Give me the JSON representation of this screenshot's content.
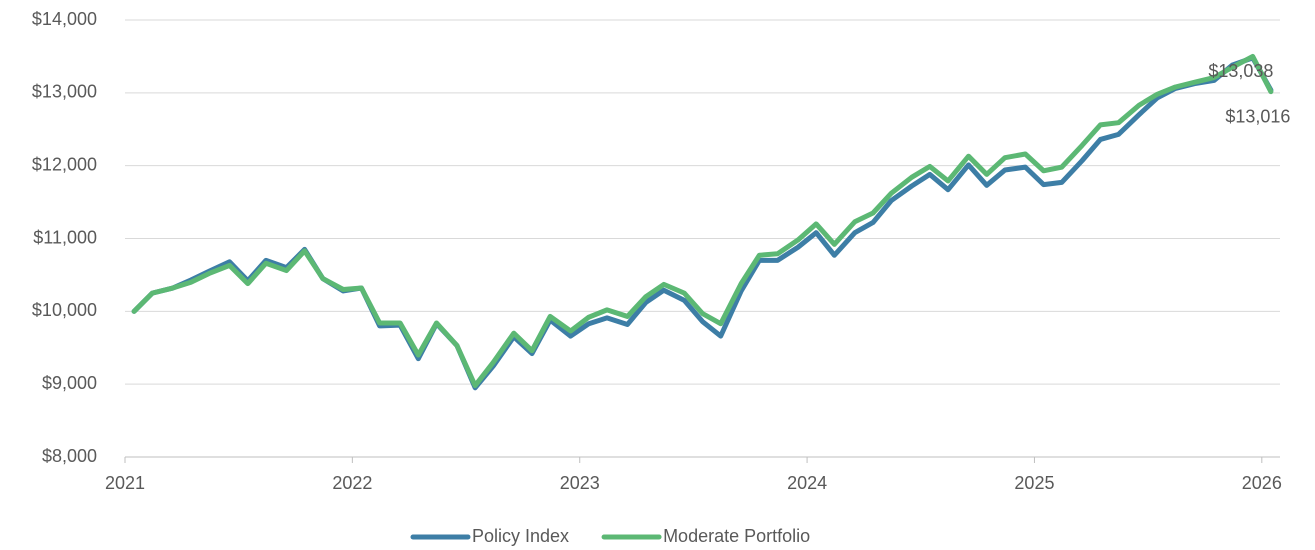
{
  "chart_data": {
    "type": "line",
    "x": [
      2021.04,
      2021.12,
      2021.21,
      2021.29,
      2021.37,
      2021.46,
      2021.54,
      2021.62,
      2021.71,
      2021.79,
      2021.87,
      2021.96,
      2022.04,
      2022.12,
      2022.21,
      2022.29,
      2022.37,
      2022.46,
      2022.54,
      2022.62,
      2022.71,
      2022.79,
      2022.87,
      2022.96,
      2023.04,
      2023.12,
      2023.21,
      2023.29,
      2023.37,
      2023.46,
      2023.54,
      2023.62,
      2023.71,
      2023.79,
      2023.87,
      2023.96,
      2024.04,
      2024.12,
      2024.21,
      2024.29,
      2024.37,
      2024.46,
      2024.54,
      2024.62,
      2024.71,
      2024.79,
      2024.87,
      2024.96,
      2025.04,
      2025.12,
      2025.21,
      2025.29,
      2025.37,
      2025.46,
      2025.54,
      2025.62,
      2025.71,
      2025.79,
      2025.87,
      2025.96,
      2026.04
    ],
    "series": [
      {
        "name": "Policy Index",
        "color": "#3d7ea6",
        "values": [
          10000,
          10250,
          10320,
          10430,
          10550,
          10680,
          10420,
          10700,
          10600,
          10850,
          10450,
          10280,
          10320,
          9800,
          9810,
          9350,
          9830,
          9530,
          8950,
          9250,
          9650,
          9420,
          9880,
          9660,
          9830,
          9910,
          9820,
          10120,
          10290,
          10150,
          9860,
          9660,
          10280,
          10700,
          10700,
          10880,
          11080,
          10770,
          11080,
          11220,
          11520,
          11720,
          11880,
          11670,
          12010,
          11730,
          11940,
          11980,
          11740,
          11770,
          12070,
          12360,
          12430,
          12700,
          12930,
          13060,
          13130,
          13170,
          13380,
          13480,
          13038
        ],
        "value_labels": [
          null,
          null,
          null,
          null,
          null,
          null,
          null,
          null,
          null,
          null,
          null,
          null,
          null,
          null,
          null,
          null,
          null,
          null,
          null,
          null,
          null,
          null,
          null,
          null,
          null,
          null,
          null,
          null,
          null,
          null,
          null,
          null,
          null,
          null,
          null,
          null,
          null,
          null,
          null,
          null,
          null,
          null,
          null,
          null,
          null,
          null,
          null,
          null,
          null,
          null,
          null,
          null,
          null,
          null,
          null,
          null,
          null,
          null,
          null,
          null,
          "$13,038"
        ]
      },
      {
        "name": "Moderate Portfolio",
        "color": "#5cb874",
        "values": [
          10000,
          10250,
          10320,
          10400,
          10520,
          10630,
          10380,
          10660,
          10560,
          10830,
          10450,
          10300,
          10320,
          9840,
          9840,
          9400,
          9840,
          9530,
          8980,
          9300,
          9700,
          9460,
          9930,
          9730,
          9920,
          10020,
          9930,
          10200,
          10370,
          10250,
          9970,
          9830,
          10380,
          10770,
          10790,
          10980,
          11200,
          10920,
          11230,
          11350,
          11620,
          11840,
          11990,
          11790,
          12130,
          11880,
          12110,
          12160,
          11930,
          11980,
          12280,
          12560,
          12590,
          12830,
          12980,
          13080,
          13150,
          13210,
          13350,
          13500,
          13016
        ],
        "value_labels": [
          null,
          null,
          null,
          null,
          null,
          null,
          null,
          null,
          null,
          null,
          null,
          null,
          null,
          null,
          null,
          null,
          null,
          null,
          null,
          null,
          null,
          null,
          null,
          null,
          null,
          null,
          null,
          null,
          null,
          null,
          null,
          null,
          null,
          null,
          null,
          null,
          null,
          null,
          null,
          null,
          null,
          null,
          null,
          null,
          null,
          null,
          null,
          null,
          null,
          null,
          null,
          null,
          null,
          null,
          null,
          null,
          null,
          null,
          null,
          null,
          "$13,016"
        ]
      }
    ],
    "xlim": [
      2021,
      2026.08
    ],
    "xticks": [
      2021,
      2022,
      2023,
      2024,
      2025,
      2026
    ],
    "ylim": [
      8000,
      14000
    ],
    "yticks": [
      {
        "value": 8000,
        "label": "$8,000"
      },
      {
        "value": 9000,
        "label": "$9,000"
      },
      {
        "value": 10000,
        "label": "$10,000"
      },
      {
        "value": 11000,
        "label": "$11,000"
      },
      {
        "value": 12000,
        "label": "$12,000"
      },
      {
        "value": 13000,
        "label": "$13,000"
      },
      {
        "value": 14000,
        "label": "$14,000"
      }
    ],
    "grid": true,
    "legend": "bottom"
  }
}
